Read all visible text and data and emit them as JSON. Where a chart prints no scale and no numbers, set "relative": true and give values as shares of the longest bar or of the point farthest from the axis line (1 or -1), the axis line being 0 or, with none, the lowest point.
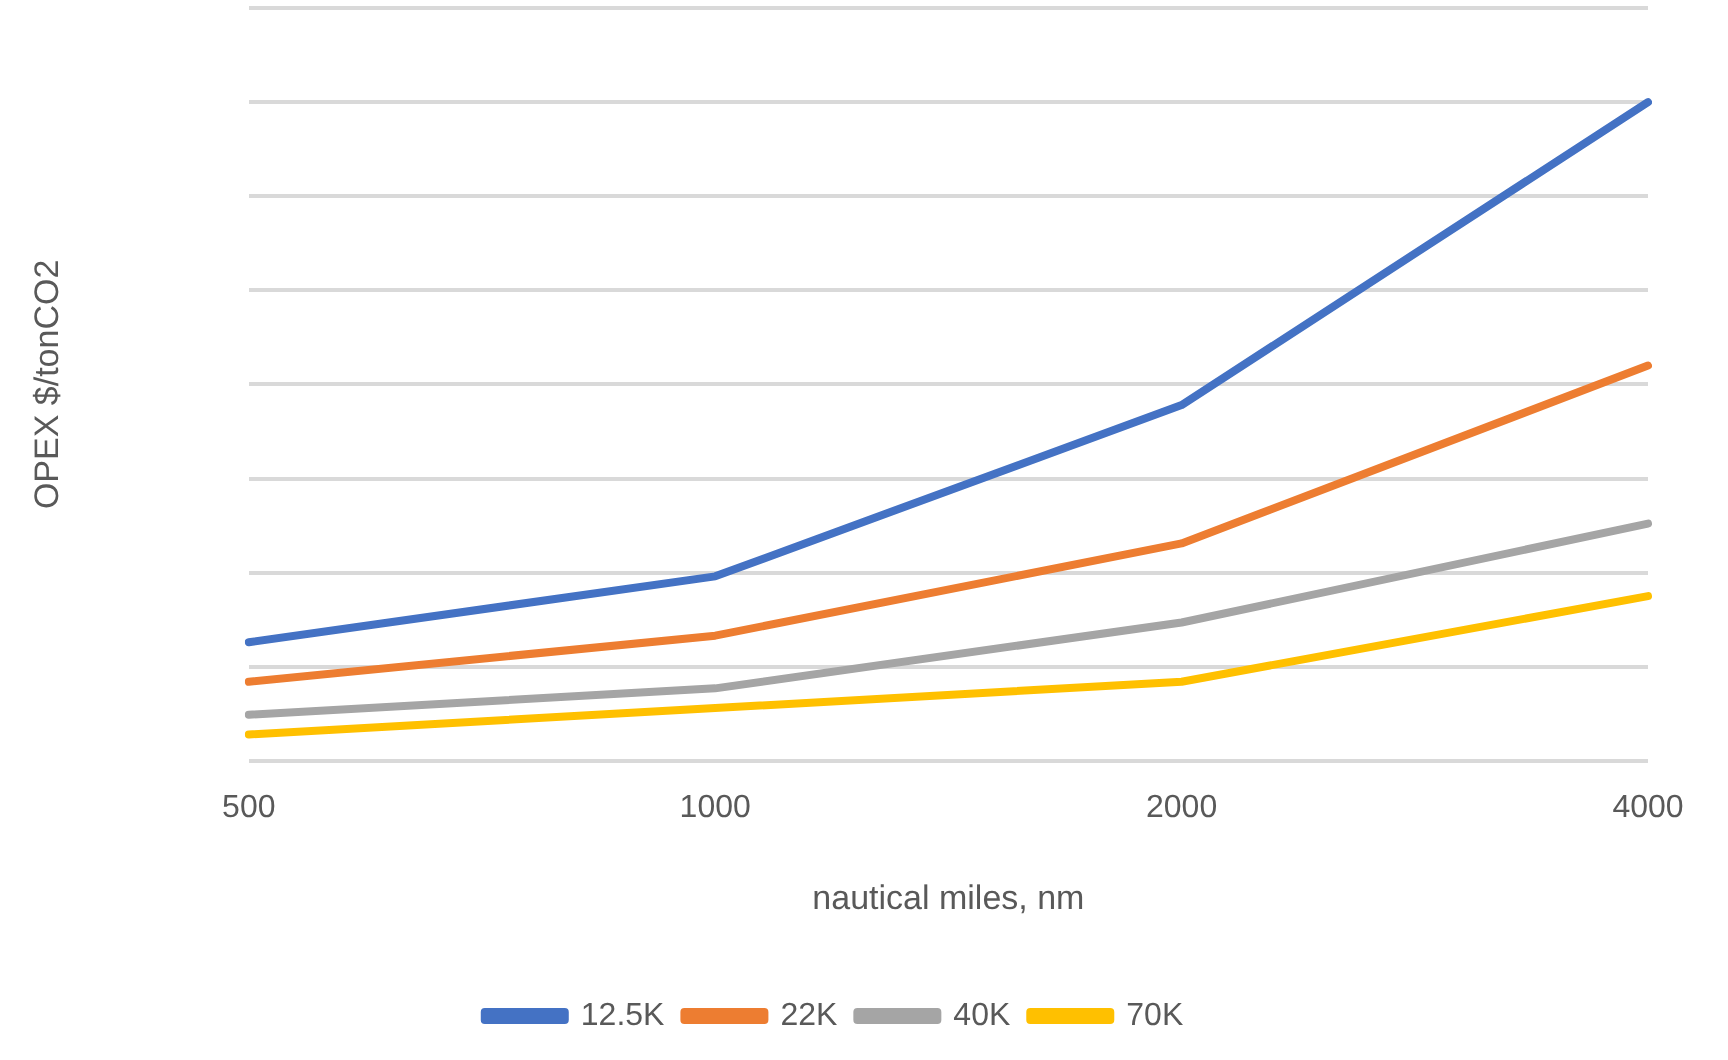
{
  "chart_data": {
    "type": "line",
    "ylabel": "OPEX $/tonCO2",
    "xlabel": "nautical miles, nm",
    "categories": [
      "500",
      "1000",
      "2000",
      "4000"
    ],
    "relative": true,
    "grid": "y",
    "legend": "bottom",
    "marker": "none",
    "line_style": "solid",
    "series": [
      {
        "name": "12.5K",
        "color": "#4472c4",
        "values": [
          0.18,
          0.28,
          0.54,
          1
        ]
      },
      {
        "name": "22K",
        "color": "#ed7d31",
        "values": [
          0.12,
          0.19,
          0.33,
          0.6
        ]
      },
      {
        "name": "40K",
        "color": "#a5a5a5",
        "values": [
          0.07,
          0.11,
          0.21,
          0.36
        ]
      },
      {
        "name": "70K",
        "color": "#ffc000",
        "values": [
          0.04,
          0.08,
          0.12,
          0.25
        ]
      }
    ]
  }
}
